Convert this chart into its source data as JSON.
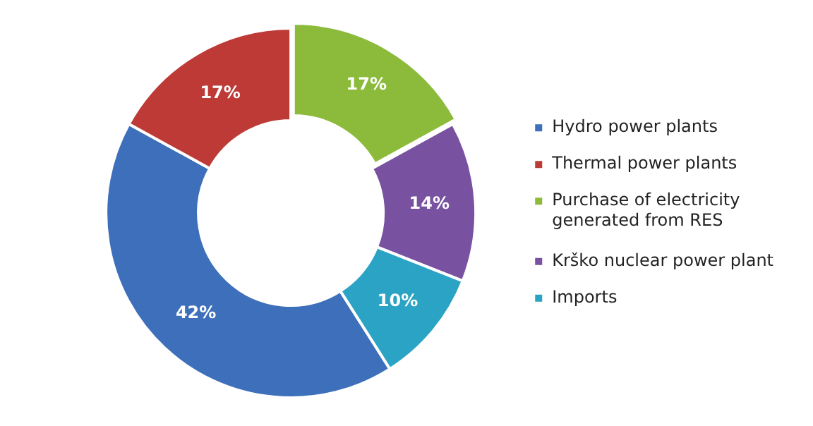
{
  "chart_data": {
    "type": "donut",
    "categories": [
      "Hydro power plants",
      "Thermal power plants",
      "Purchase of electricity generated from RES",
      "Krško nuclear power plant",
      "Imports"
    ],
    "values": [
      42,
      17,
      17,
      14,
      10
    ],
    "colors": [
      "#3d6fba",
      "#bd3a36",
      "#8cbb3c",
      "#7852a0",
      "#2ba3c4"
    ],
    "value_labels": [
      "42%",
      "17%",
      "17%",
      "14%",
      "10%"
    ],
    "legend": "right"
  }
}
